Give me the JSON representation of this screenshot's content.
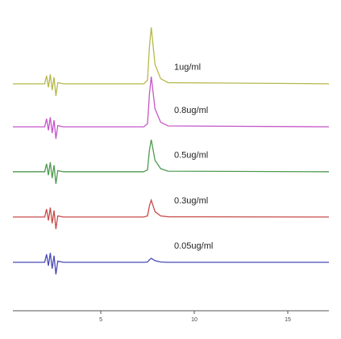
{
  "chart_data": {
    "type": "line",
    "x": [
      0.3,
      2.0,
      2.1,
      2.2,
      2.3,
      2.4,
      2.5,
      2.6,
      2.7,
      3.0,
      7.3,
      7.5,
      7.6,
      7.7,
      7.9,
      8.2,
      8.6,
      17.2
    ],
    "xlim": [
      0.3,
      17.2
    ],
    "xticks": [
      5,
      10,
      15
    ],
    "ylim": [
      0,
      100
    ],
    "series": [
      {
        "name": "1ug/ml",
        "color": "#b6b84c",
        "values": [
          79.2,
          79.2,
          82,
          78,
          82.5,
          77,
          81.5,
          75,
          79.6,
          79.2,
          79.2,
          80.5,
          92,
          98.9,
          86,
          81,
          79.6,
          79.2
        ]
      },
      {
        "name": "0.8ug/ml",
        "color": "#c656c8",
        "values": [
          64.2,
          64.2,
          67,
          63,
          67.5,
          62,
          66.5,
          60,
          64.6,
          64.2,
          64.2,
          65.3,
          75.5,
          81.7,
          70.5,
          65.8,
          64.5,
          64.2
        ]
      },
      {
        "name": "0.5ug/ml",
        "color": "#4f9a50",
        "values": [
          48.5,
          48.5,
          51.3,
          47.3,
          51.8,
          46.3,
          50.8,
          44.3,
          48.9,
          48.5,
          48.5,
          49.2,
          56,
          59.7,
          52.5,
          49.6,
          48.7,
          48.5
        ]
      },
      {
        "name": "0.3ug/ml",
        "color": "#c64c4c",
        "values": [
          32.7,
          32.7,
          35.5,
          31.5,
          36,
          30.5,
          35,
          28.5,
          33.1,
          32.7,
          32.7,
          33.1,
          36.6,
          38.6,
          34.6,
          33.1,
          32.8,
          32.7
        ]
      },
      {
        "name": "0.05ug/ml",
        "color": "#4a4ab4",
        "values": [
          16.9,
          16.9,
          19.7,
          15.7,
          20.2,
          14.7,
          19.2,
          12.7,
          17.3,
          16.9,
          16.9,
          17,
          17.8,
          18.3,
          17.5,
          17,
          16.9,
          16.9
        ]
      }
    ]
  }
}
